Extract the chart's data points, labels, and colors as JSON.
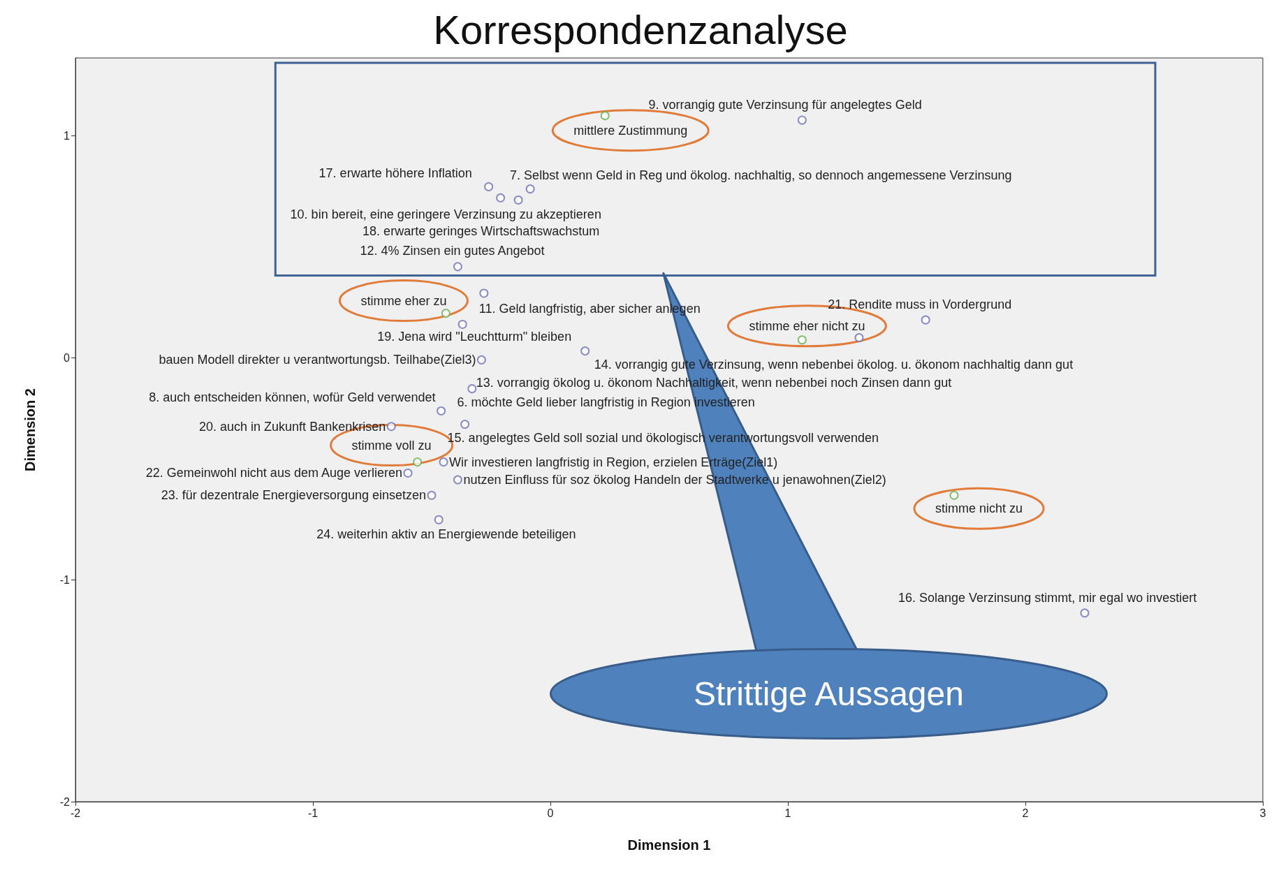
{
  "chart_data": {
    "type": "scatter",
    "title": "Korrespondenzanalyse",
    "xlabel": "Dimension 1",
    "ylabel": "Dimension 2",
    "xlim": [
      -2,
      3
    ],
    "ylim": [
      -2,
      1.35
    ],
    "xticks": [
      -2,
      -1,
      0,
      1,
      2,
      3
    ],
    "yticks": [
      -2,
      -1,
      0,
      1
    ],
    "marker": "circle",
    "series": [
      {
        "color": "#6e72b5",
        "x": [
          1.06,
          -0.26,
          -0.085,
          -0.21,
          -0.135,
          -0.39,
          -0.28,
          -0.37,
          1.58,
          1.3,
          0.146,
          -0.29,
          -0.33,
          -0.46,
          -0.36,
          -0.67,
          -0.45,
          -0.6,
          -0.39,
          -0.5,
          -0.47,
          2.25
        ],
        "values": [
          1.07,
          0.77,
          0.76,
          0.72,
          0.71,
          0.41,
          0.29,
          0.15,
          0.17,
          0.09,
          0.03,
          -0.01,
          -0.14,
          -0.24,
          -0.3,
          -0.31,
          -0.47,
          -0.52,
          -0.55,
          -0.62,
          -0.73,
          -1.15
        ]
      },
      {
        "color": "#66b04f",
        "x": [
          0.23,
          -0.44,
          1.06,
          -0.56,
          1.7
        ],
        "values": [
          1.09,
          0.2,
          0.08,
          -0.47,
          -0.62
        ]
      }
    ],
    "annotations": [
      {
        "text": "9. vorrangig gute Verzinsung für angelegtes Geld",
        "x": 1.06,
        "y": 1.07
      },
      {
        "text": "mittlere Zustimmung",
        "x": 0.23,
        "y": 1.09
      },
      {
        "text": "17. erwarte höhere Inflation",
        "x": -0.26,
        "y": 0.77
      },
      {
        "text": "7. Selbst wenn Geld in Reg und ökolog. nachhaltig, so dennoch angemessene Verzinsung",
        "x": -0.085,
        "y": 0.76
      },
      {
        "text": "10. bin bereit, eine geringere Verzinsung zu akzeptieren",
        "x": -0.21,
        "y": 0.72
      },
      {
        "text": "18. erwarte geringes Wirtschaftswachstum",
        "x": -0.135,
        "y": 0.71
      },
      {
        "text": "12. 4% Zinsen ein gutes Angebot",
        "x": -0.39,
        "y": 0.41
      },
      {
        "text": "stimme eher zu",
        "x": -0.44,
        "y": 0.2
      },
      {
        "text": "11. Geld langfristig, aber sicher anlegen",
        "x": -0.28,
        "y": 0.29
      },
      {
        "text": "19. Jena wird \"Leuchtturm\" bleiben",
        "x": -0.37,
        "y": 0.15
      },
      {
        "text": "21. Rendite muss in Vordergrund",
        "x": 1.58,
        "y": 0.17
      },
      {
        "text": "stimme eher nicht zu",
        "x": 1.06,
        "y": 0.08
      },
      {
        "text": "bauen Modell direkter u verantwortungsb. Teilhabe(Ziel3)",
        "x": -0.29,
        "y": -0.01
      },
      {
        "text": "14. vorrangig gute Verzinsung, wenn nebenbei ökolog. u. ökonom nachhaltig dann gut",
        "x": 0.146,
        "y": 0.03
      },
      {
        "text": "13. vorrangig ökolog u. ökonom Nachhaltigkeit, wenn nebenbei noch Zinsen dann gut",
        "x": -0.33,
        "y": -0.14
      },
      {
        "text": "8. auch entscheiden können, wofür Geld verwendet",
        "x": -0.46,
        "y": -0.24
      },
      {
        "text": "6. möchte Geld lieber langfristig in Region investieren",
        "x": -0.36,
        "y": -0.3
      },
      {
        "text": "20. auch in Zukunft Bankenkrisen",
        "x": -0.67,
        "y": -0.31
      },
      {
        "text": "15. angelegtes Geld soll sozial und ökologisch verantwortungsvoll verwenden",
        "x": -0.36,
        "y": -0.3
      },
      {
        "text": "stimme voll zu",
        "x": -0.56,
        "y": -0.47
      },
      {
        "text": "Wir investieren langfristig in Region, erzielen Erträge(Ziel1)",
        "x": -0.45,
        "y": -0.47
      },
      {
        "text": "22. Gemeinwohl nicht aus dem Auge verlieren",
        "x": -0.6,
        "y": -0.52
      },
      {
        "text": "nutzen Einfluss für soz ökolog Handeln der Stadtwerke u jenawohnen(Ziel2)",
        "x": -0.39,
        "y": -0.55
      },
      {
        "text": "23. für dezentrale Energieversorgung einsetzen",
        "x": -0.5,
        "y": -0.62
      },
      {
        "text": "stimme nicht zu",
        "x": 1.7,
        "y": -0.62
      },
      {
        "text": "24. weiterhin aktiv an Energiewende beteiligen",
        "x": -0.47,
        "y": -0.73
      },
      {
        "text": "16. Solange Verzinsung stimmt, mir egal wo investiert",
        "x": 2.25,
        "y": -1.15
      },
      "Strittige Aussagen"
    ]
  }
}
